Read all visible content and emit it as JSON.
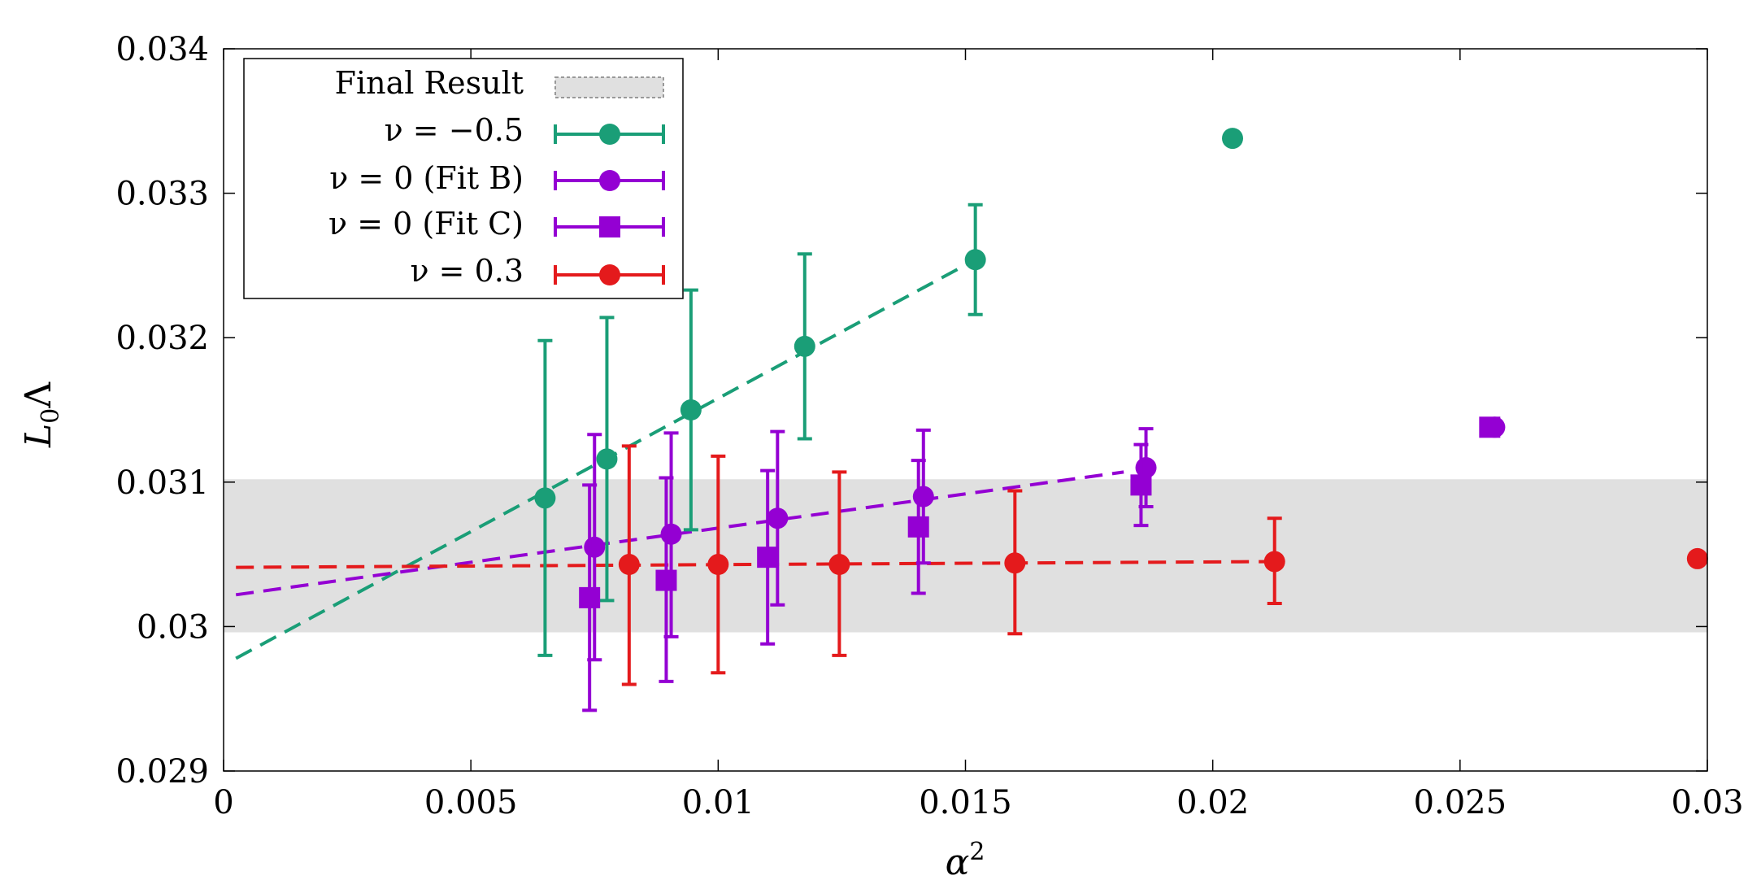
{
  "chart_data": {
    "type": "scatter",
    "title": "",
    "xlabel_base": "α",
    "xlabel_sup": "2",
    "ylabel_base": "L",
    "ylabel_sub": "0",
    "ylabel_tail": "Λ",
    "xlim": [
      0,
      0.03
    ],
    "ylim": [
      0.029,
      0.034
    ],
    "x_ticks": [
      0,
      0.005,
      0.01,
      0.015,
      0.02,
      0.025,
      0.03
    ],
    "x_tick_labels": [
      "0",
      "0.005",
      "0.01",
      "0.015",
      "0.02",
      "0.025",
      "0.03"
    ],
    "y_ticks": [
      0.029,
      0.03,
      0.031,
      0.032,
      0.033,
      0.034
    ],
    "y_tick_labels": [
      "0.029",
      "0.03",
      "0.031",
      "0.032",
      "0.033",
      "0.034"
    ],
    "grid": false,
    "legend_position": "top-left",
    "band": {
      "name": "Final Result",
      "legend_label": "Final Result",
      "ymin": 0.02996,
      "ymax": 0.03102,
      "color": "#e0e0e0"
    },
    "series": [
      {
        "name": "nu=-0.5",
        "legend_label": "ν = −0.5",
        "color": "#1a9e77",
        "marker": "circle",
        "points": [
          {
            "x": 0.0065,
            "y": 0.03089,
            "yerr_low": 0.0298,
            "yerr_high": 0.03198
          },
          {
            "x": 0.00775,
            "y": 0.03116,
            "yerr_low": 0.03018,
            "yerr_high": 0.03214
          },
          {
            "x": 0.00945,
            "y": 0.0315,
            "yerr_low": 0.03067,
            "yerr_high": 0.03233
          },
          {
            "x": 0.01175,
            "y": 0.03194,
            "yerr_low": 0.0313,
            "yerr_high": 0.03258
          },
          {
            "x": 0.0152,
            "y": 0.03254,
            "yerr_low": 0.03216,
            "yerr_high": 0.03292
          },
          {
            "x": 0.0204,
            "y": 0.03338
          }
        ],
        "fit": {
          "x": [
            0.00025,
            0.0152
          ],
          "y": [
            0.02978,
            0.03254
          ]
        }
      },
      {
        "name": "nu=0 (Fit B)",
        "legend_label": "ν = 0 (Fit B)",
        "color": "#9400d3",
        "marker": "circle",
        "points": [
          {
            "x": 0.0075,
            "y": 0.03055,
            "yerr_low": 0.02977,
            "yerr_high": 0.03133
          },
          {
            "x": 0.00905,
            "y": 0.03064,
            "yerr_low": 0.02993,
            "yerr_high": 0.03134
          },
          {
            "x": 0.0112,
            "y": 0.03075,
            "yerr_low": 0.03015,
            "yerr_high": 0.03135
          },
          {
            "x": 0.01415,
            "y": 0.0309,
            "yerr_low": 0.03044,
            "yerr_high": 0.03136
          },
          {
            "x": 0.01865,
            "y": 0.0311,
            "yerr_low": 0.03083,
            "yerr_high": 0.03137
          },
          {
            "x": 0.0257,
            "y": 0.03138
          }
        ],
        "fit": {
          "x": [
            0.00025,
            0.0182
          ],
          "y": [
            0.03022,
            0.03107
          ]
        }
      },
      {
        "name": "nu=0 (Fit C)",
        "legend_label": "ν = 0 (Fit C)",
        "color": "#9400d3",
        "marker": "square",
        "points": [
          {
            "x": 0.0074,
            "y": 0.0302,
            "yerr_low": 0.02942,
            "yerr_high": 0.03098
          },
          {
            "x": 0.00895,
            "y": 0.03032,
            "yerr_low": 0.02962,
            "yerr_high": 0.03103
          },
          {
            "x": 0.011,
            "y": 0.03048,
            "yerr_low": 0.02988,
            "yerr_high": 0.03108
          },
          {
            "x": 0.01405,
            "y": 0.03069,
            "yerr_low": 0.03023,
            "yerr_high": 0.03115
          },
          {
            "x": 0.01855,
            "y": 0.03098,
            "yerr_low": 0.0307,
            "yerr_high": 0.03126
          },
          {
            "x": 0.0256,
            "y": 0.03138
          }
        ]
      },
      {
        "name": "nu=0.3",
        "legend_label": "ν = 0.3",
        "color": "#e41a1c",
        "marker": "circle",
        "points": [
          {
            "x": 0.0082,
            "y": 0.03043,
            "yerr_low": 0.0296,
            "yerr_high": 0.03125
          },
          {
            "x": 0.01,
            "y": 0.03043,
            "yerr_low": 0.02968,
            "yerr_high": 0.03118
          },
          {
            "x": 0.01245,
            "y": 0.03043,
            "yerr_low": 0.0298,
            "yerr_high": 0.03107
          },
          {
            "x": 0.016,
            "y": 0.03044,
            "yerr_low": 0.02995,
            "yerr_high": 0.03094
          },
          {
            "x": 0.02125,
            "y": 0.03045,
            "yerr_low": 0.03016,
            "yerr_high": 0.03075
          },
          {
            "x": 0.0298,
            "y": 0.03047
          }
        ],
        "fit": {
          "x": [
            0.00025,
            0.02125
          ],
          "y": [
            0.03041,
            0.03045
          ]
        }
      }
    ]
  }
}
